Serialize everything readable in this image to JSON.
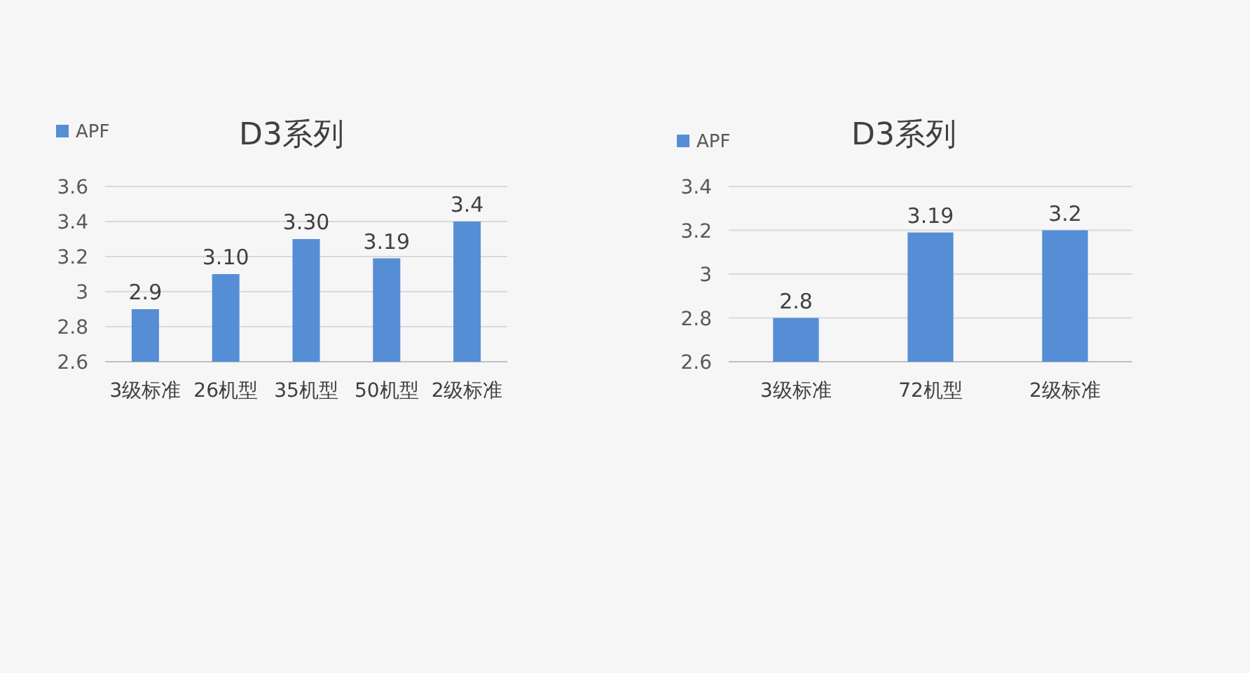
{
  "chart_data": [
    {
      "type": "bar",
      "title": "D3系列",
      "categories": [
        "3级标准",
        "26机型",
        "35机型",
        "50机型",
        "2级标准"
      ],
      "series": [
        {
          "name": "APF",
          "color": "#558ed5",
          "values": [
            2.9,
            3.1,
            3.3,
            3.19,
            3.4
          ],
          "value_labels": [
            "2.9",
            "3.10",
            "3.30",
            "3.19",
            "3.4"
          ]
        }
      ],
      "ylim": [
        2.6,
        3.6
      ],
      "yticks": [
        2.6,
        2.8,
        3,
        3.2,
        3.4,
        3.6
      ],
      "grid": "y",
      "legend": "top left"
    },
    {
      "type": "bar",
      "title": "D3系列",
      "categories": [
        "3级标准",
        "72机型",
        "2级标准"
      ],
      "series": [
        {
          "name": "APF",
          "color": "#558ed5",
          "values": [
            2.8,
            3.19,
            3.2
          ],
          "value_labels": [
            "2.8",
            "3.19",
            "3.2"
          ]
        }
      ],
      "ylim": [
        2.6,
        3.4
      ],
      "yticks": [
        2.6,
        2.8,
        3,
        3.2,
        3.4
      ],
      "grid": "y",
      "legend": "top left"
    }
  ]
}
